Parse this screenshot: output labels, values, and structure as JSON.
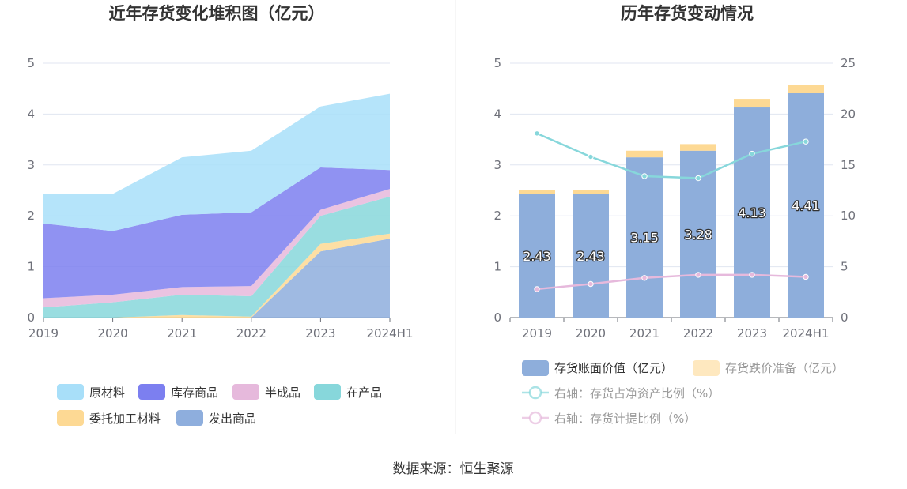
{
  "source": "数据来源：恒生聚源",
  "chart_data": [
    {
      "type": "area",
      "title": "近年存货变化堆积图（亿元）",
      "x": [
        "2019",
        "2020",
        "2021",
        "2022",
        "2023",
        "2024H1"
      ],
      "ylim": [
        0,
        5
      ],
      "yticks": [
        "0",
        "1",
        "2",
        "3",
        "4",
        "5"
      ],
      "stacked": true,
      "grid": true,
      "legend_position": "bottom",
      "series": [
        {
          "name": "发出商品",
          "color": "#8eaedd",
          "values": [
            0,
            0,
            0,
            0,
            1.3,
            1.55
          ]
        },
        {
          "name": "委托加工材料",
          "color": "#fdd994",
          "values": [
            0,
            0,
            0.05,
            0.02,
            0.15,
            0.1
          ]
        },
        {
          "name": "在产品",
          "color": "#87d7db",
          "values": [
            0.2,
            0.3,
            0.4,
            0.4,
            0.55,
            0.73
          ]
        },
        {
          "name": "半成品",
          "color": "#e6b9dc",
          "values": [
            0.18,
            0.15,
            0.15,
            0.2,
            0.12,
            0.15
          ]
        },
        {
          "name": "库存商品",
          "color": "#7c7ff0",
          "values": [
            1.47,
            1.25,
            1.42,
            1.45,
            0.83,
            0.37
          ]
        },
        {
          "name": "原材料",
          "color": "#a8dff9",
          "values": [
            0.58,
            0.73,
            1.13,
            1.21,
            1.2,
            1.5
          ]
        }
      ],
      "legend": [
        {
          "name": "原材料",
          "color": "#a8dff9"
        },
        {
          "name": "库存商品",
          "color": "#7c7ff0"
        },
        {
          "name": "半成品",
          "color": "#e6b9dc"
        },
        {
          "name": "在产品",
          "color": "#87d7db"
        },
        {
          "name": "委托加工材料",
          "color": "#fdd994"
        },
        {
          "name": "发出商品",
          "color": "#8eaedd"
        }
      ]
    },
    {
      "type": "bar",
      "title": "历年存货变动情况",
      "categories": [
        "2019",
        "2020",
        "2021",
        "2022",
        "2023",
        "2024H1"
      ],
      "ylim": [
        0,
        5
      ],
      "yticks": [
        "0",
        "1",
        "2",
        "3",
        "4",
        "5"
      ],
      "y2lim": [
        0,
        25
      ],
      "y2ticks": [
        "0",
        "5",
        "10",
        "15",
        "20",
        "25"
      ],
      "grid": true,
      "legend_position": "bottom",
      "series": [
        {
          "name": "存货账面价值（亿元）",
          "kind": "bar",
          "color": "#8eaedb",
          "values": [
            2.43,
            2.43,
            3.15,
            3.28,
            4.13,
            4.41
          ],
          "labels": [
            "2.43",
            "2.43",
            "3.15",
            "3.28",
            "4.13",
            "4.41"
          ]
        },
        {
          "name": "存货跌价准备（亿元）",
          "kind": "bar-stack",
          "color": "#fdd994",
          "values": [
            0.07,
            0.08,
            0.13,
            0.13,
            0.17,
            0.17
          ]
        },
        {
          "name": "右轴：存货占净资产比例（%）",
          "kind": "line",
          "axis": "right",
          "color": "#87d7db",
          "values": [
            18.1,
            15.8,
            13.9,
            13.7,
            16.1,
            17.3
          ]
        },
        {
          "name": "右轴：存货计提比例（%）",
          "kind": "line",
          "axis": "right",
          "color": "#e6b9dc",
          "values": [
            2.8,
            3.3,
            3.9,
            4.2,
            4.2,
            4.0
          ]
        }
      ]
    }
  ]
}
